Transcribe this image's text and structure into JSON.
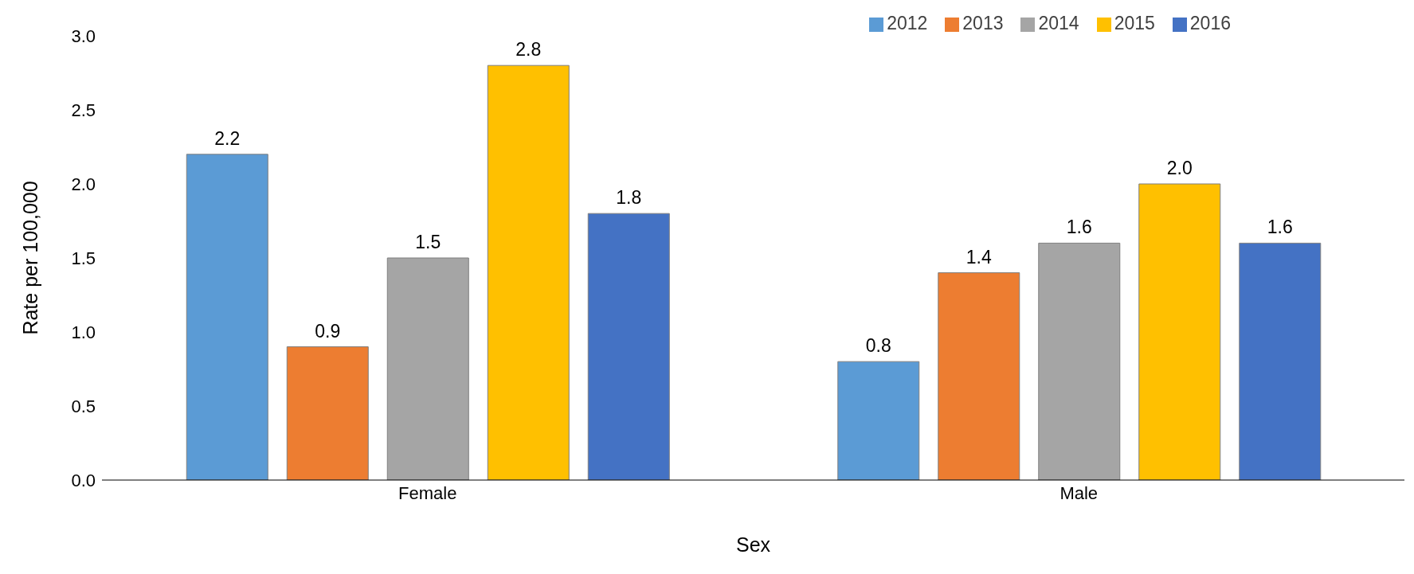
{
  "chart_data": {
    "type": "bar",
    "xlabel": "Sex",
    "ylabel": "Rate per 100,000",
    "categories": [
      "Female",
      "Male"
    ],
    "series": [
      {
        "name": "2012",
        "color": "#5b9bd5",
        "values": [
          2.2,
          0.8
        ],
        "value_labels": [
          "2.2",
          "0.8"
        ]
      },
      {
        "name": "2013",
        "color": "#ed7d31",
        "values": [
          0.9,
          1.4
        ],
        "value_labels": [
          "0.9",
          "1.4"
        ]
      },
      {
        "name": "2014",
        "color": "#a5a5a5",
        "values": [
          1.5,
          1.6
        ],
        "value_labels": [
          "1.5",
          "1.6"
        ]
      },
      {
        "name": "2015",
        "color": "#ffc000",
        "values": [
          2.8,
          2.0
        ],
        "value_labels": [
          "2.8",
          "2.0"
        ]
      },
      {
        "name": "2016",
        "color": "#4472c4",
        "values": [
          1.8,
          1.6
        ],
        "value_labels": [
          "1.8",
          "1.6"
        ]
      }
    ],
    "ylim": [
      0,
      3
    ],
    "yticks": [
      {
        "value": 0,
        "label": "0.0"
      },
      {
        "value": 0.5,
        "label": "0.5"
      },
      {
        "value": 1,
        "label": "1.0"
      },
      {
        "value": 1.5,
        "label": "1.5"
      },
      {
        "value": 2,
        "label": "2.0"
      },
      {
        "value": 2.5,
        "label": "2.5"
      },
      {
        "value": 3,
        "label": "3.0"
      }
    ],
    "legend": "top right"
  }
}
